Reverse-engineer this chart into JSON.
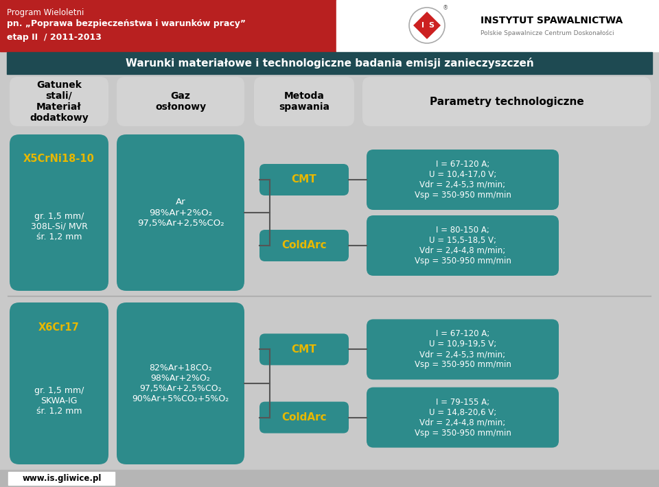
{
  "bg_color": "#c9c9c9",
  "header_bg": "#1e4a52",
  "top_bar_color": "#b82020",
  "top_bar_texts": [
    "Program Wieloletni",
    "pn. „Poprawa bezpieczeństwa i warunków pracy”",
    "etap II  / 2011-2013"
  ],
  "header_text": "Warunki materiałowe i technologiczne badania emisji zanieczyszczeń",
  "col_headers": [
    "Gatunek\nstali/\nMateriał\ndodatkowy",
    "Gaz\nosłonowy",
    "Metoda\nspawania",
    "Parametry technologiczne"
  ],
  "col_bg": "#d3d3d3",
  "teal": "#2d8b8b",
  "yellow": "#e8b800",
  "white": "#ffffff",
  "conn_color": "#555555",
  "bottom_text": "www.is.gliwice.pl",
  "row1": {
    "material_title": "X5CrNi18-10",
    "material_body": "gr. 1,5 mm/\n308L-Si/ MVR\nśr. 1,2 mm",
    "gas": "Ar\n98%Ar+2%O₂\n97,5%Ar+2,5%CO₂",
    "methods": [
      "CMT",
      "ColdArc"
    ],
    "params": [
      "I = 67-120 A;\nU = 10,4-17,0 V;\nVdr = 2,4-5,3 m/min;\nVsp = 350-950 mm/min",
      "I = 80-150 A;\nU = 15,5-18,5 V;\nVdr = 2,4-4,8 m/min;\nVsp = 350-950 mm/min"
    ]
  },
  "row2": {
    "material_title": "X6Cr17",
    "material_body": "gr. 1,5 mm/\nSKWA-IG\nśr. 1,2 mm",
    "gas": "82%Ar+18CO₂\n98%Ar+2%O₂\n97,5%Ar+2,5%CO₂\n90%Ar+5%CO₂+5%O₂",
    "methods": [
      "CMT",
      "ColdArc"
    ],
    "params": [
      "I = 67-120 A;\nU = 10,9-19,5 V;\nVdr = 2,4-5,3 m/min;\nVsp = 350-950 mm/min",
      "I = 79-155 A;\nU = 14,8-20,6 V;\nVdr = 2,4-4,8 m/min;\nVsp = 350-950 mm/min"
    ]
  }
}
